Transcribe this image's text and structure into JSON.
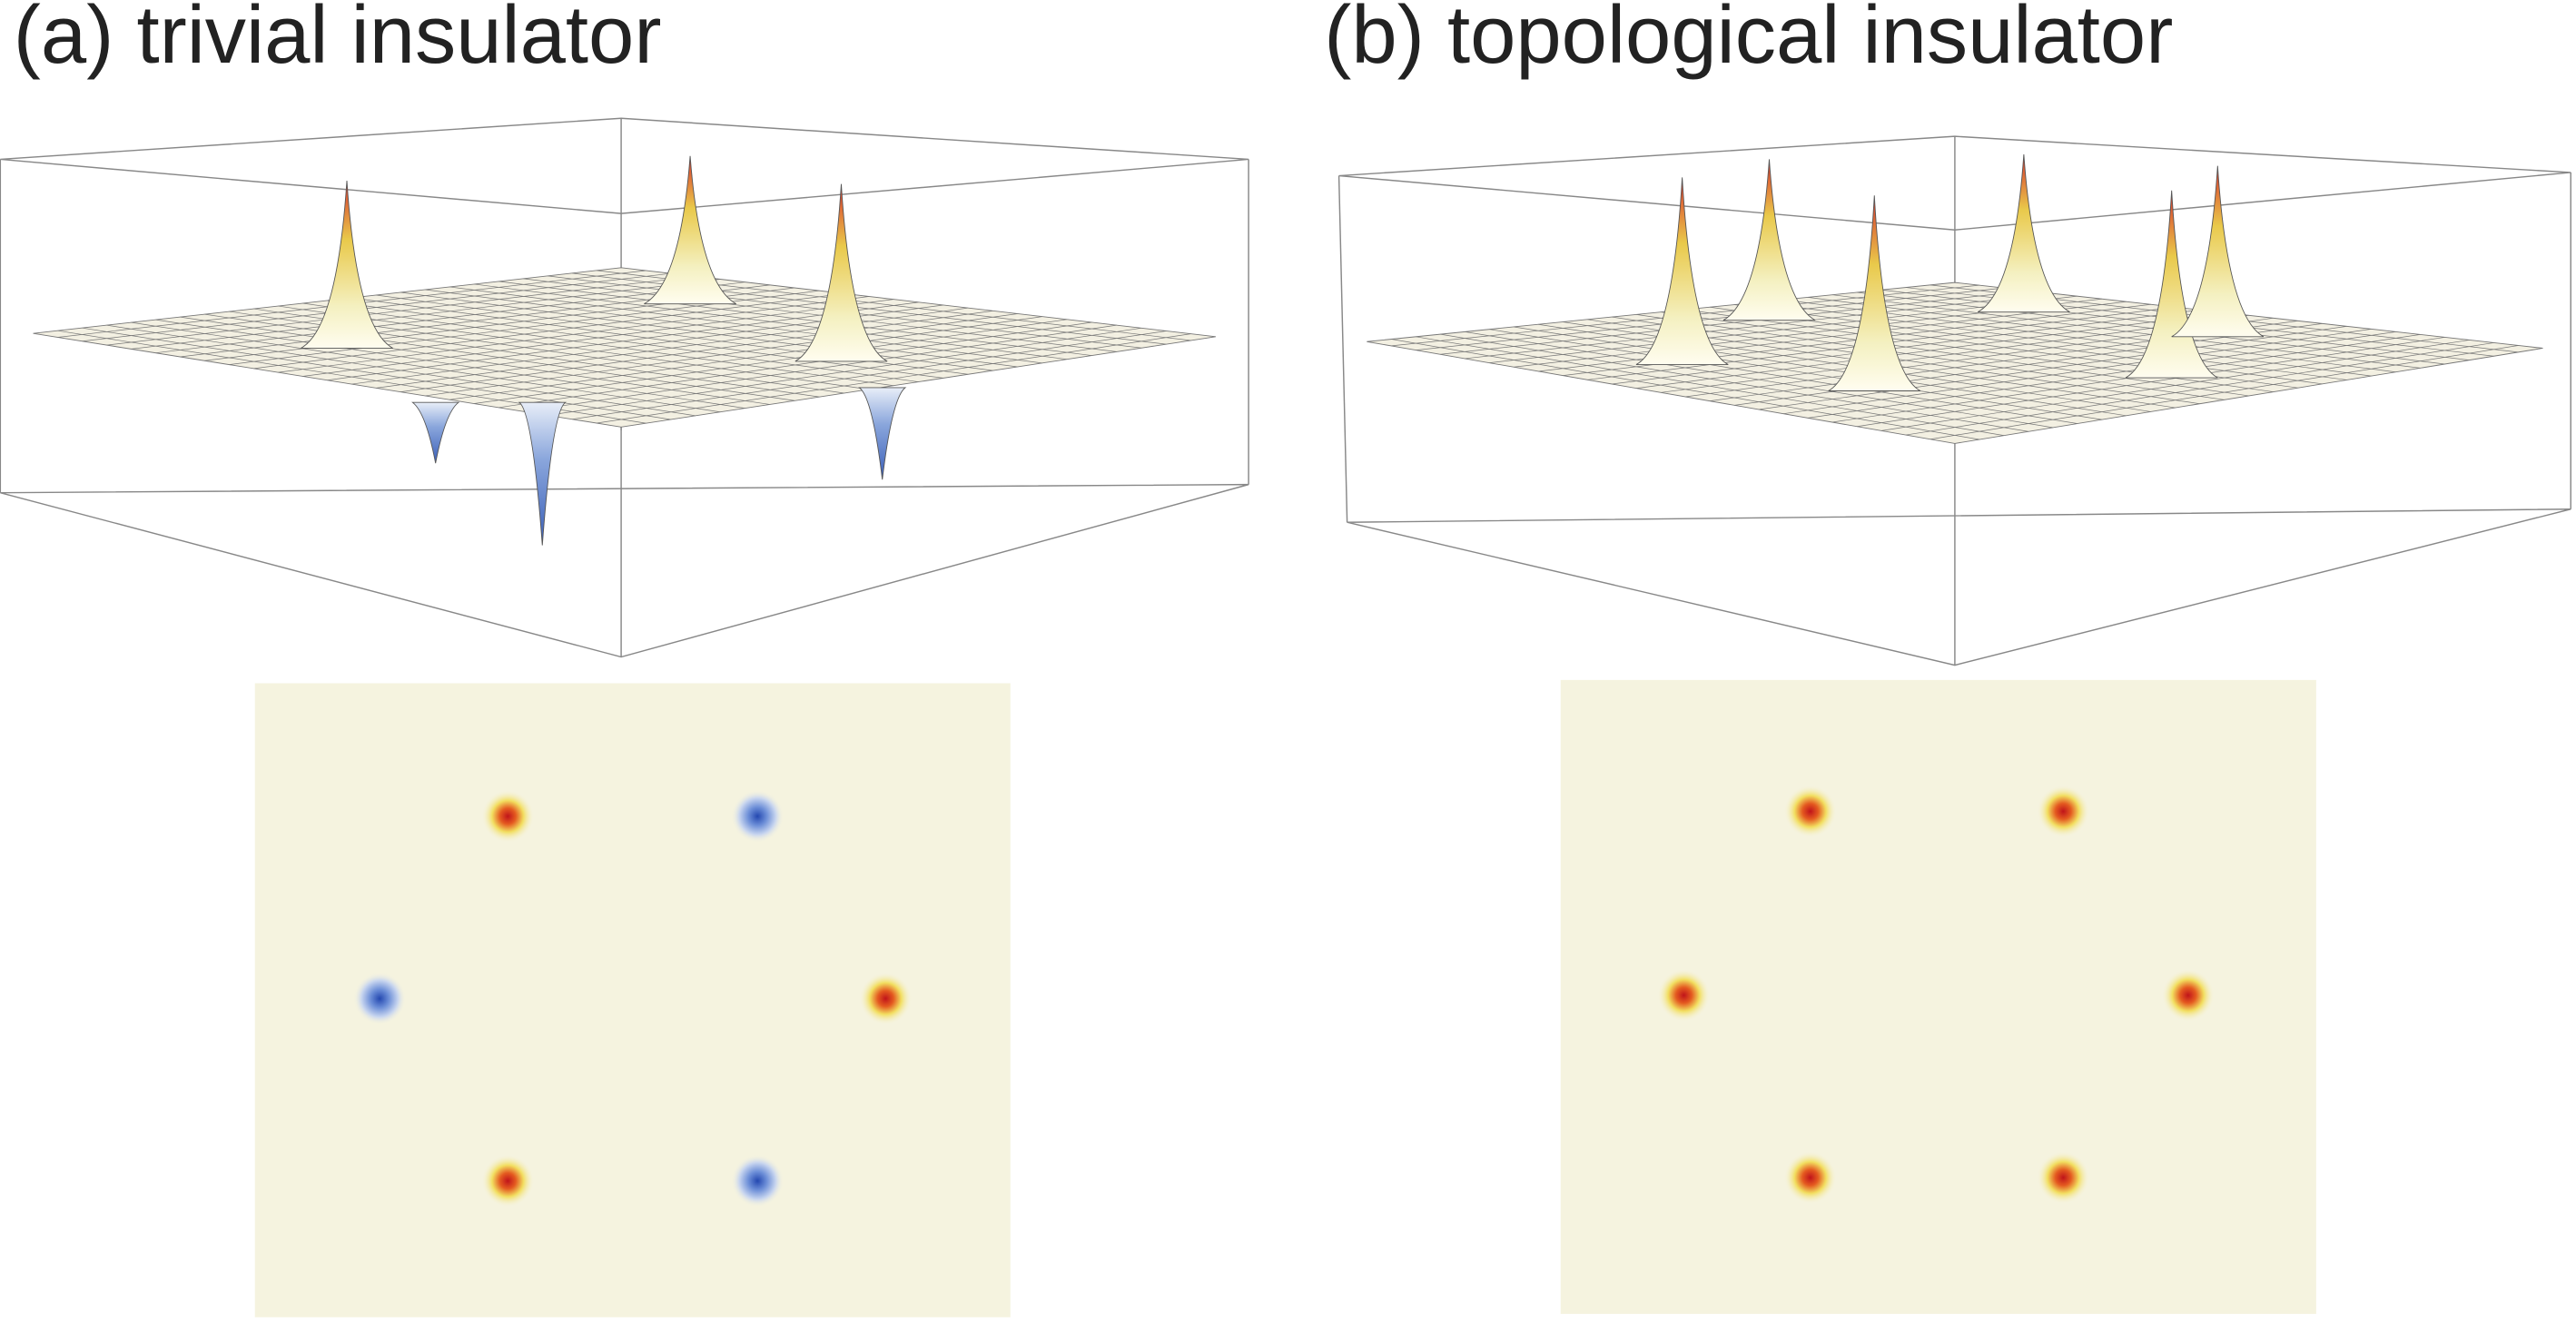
{
  "panels": [
    {
      "title": "(a) trivial insulator"
    },
    {
      "title": "(b) topological insulator"
    }
  ]
}
